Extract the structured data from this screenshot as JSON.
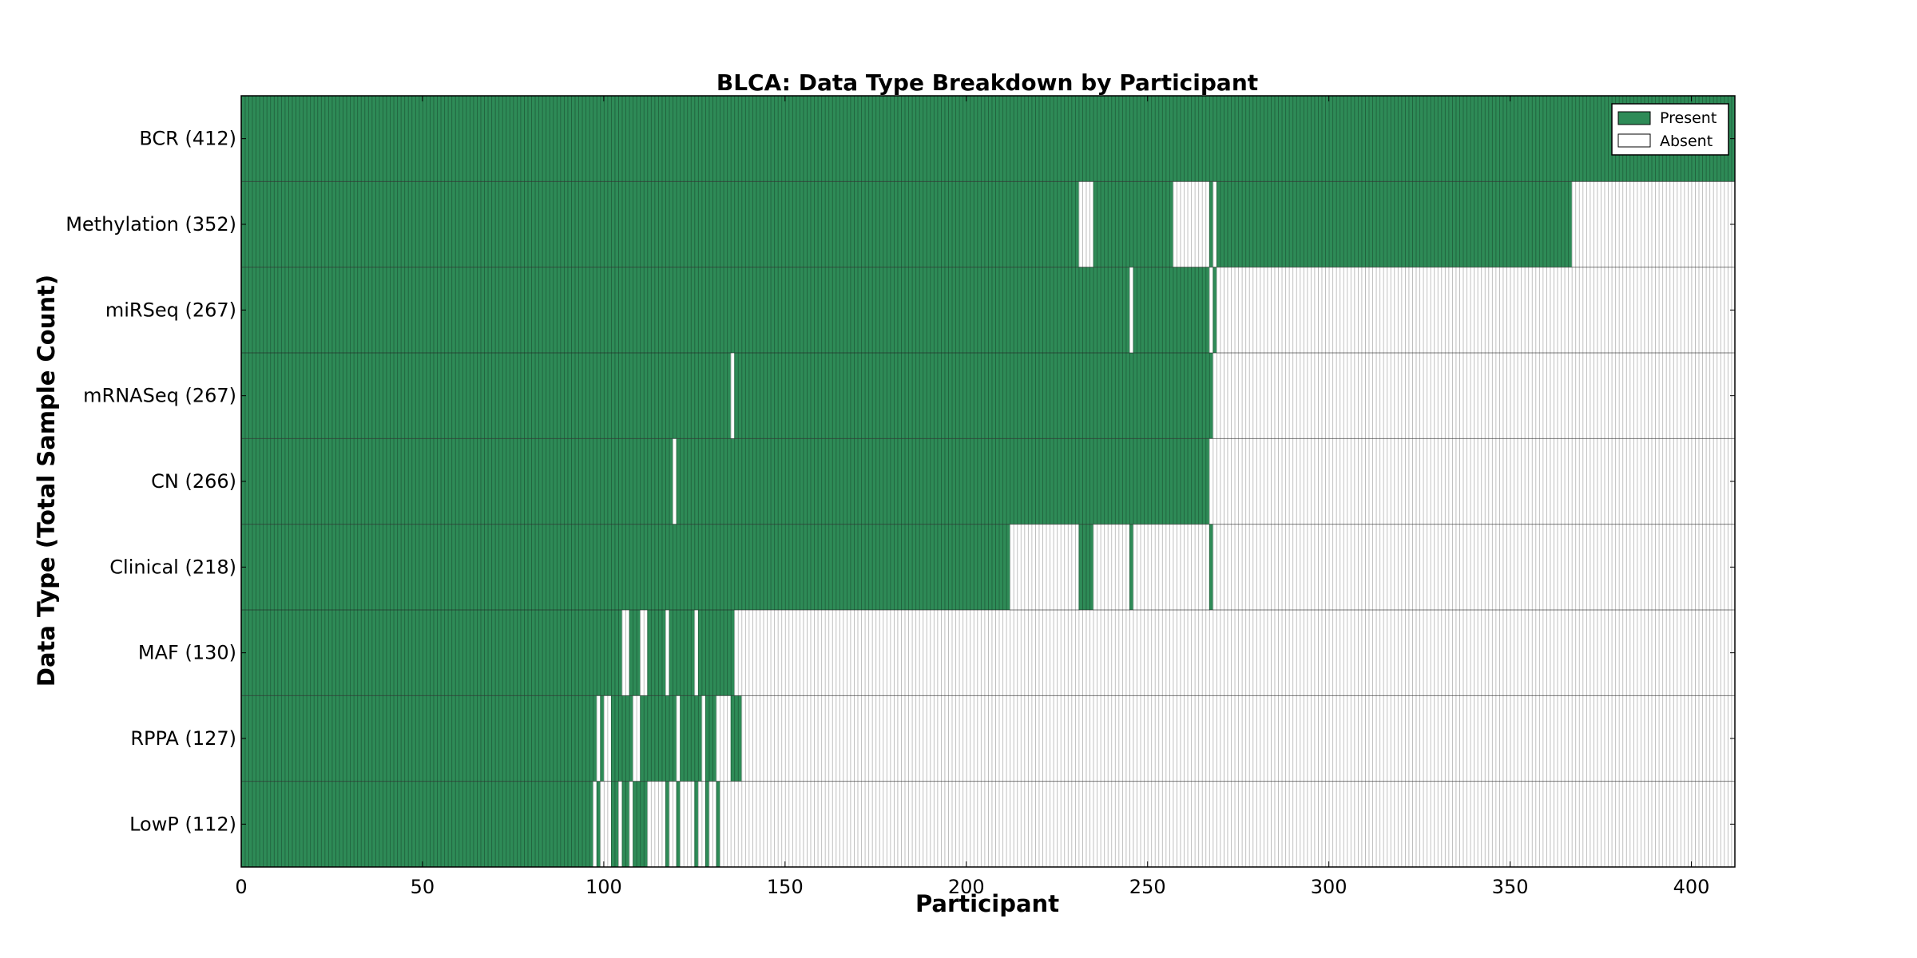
{
  "chart_data": {
    "type": "heatmap",
    "title": "BLCA: Data Type Breakdown by Participant",
    "xlabel": "Participant",
    "ylabel": "Data Type (Total Sample Count)",
    "xlim": [
      0,
      412
    ],
    "x_ticks": [
      "0",
      "50",
      "100",
      "150",
      "200",
      "250",
      "300",
      "350",
      "400"
    ],
    "x_tick_values": [
      0,
      50,
      100,
      150,
      200,
      250,
      300,
      350,
      400
    ],
    "legend": {
      "placement": "top-right",
      "present_label": "Present",
      "absent_label": "Absent"
    },
    "colors": {
      "present": "#2e8b57",
      "absent": "#ffffff",
      "stripe": "#1f5f3b",
      "absent_stripe": "#b0b0b0"
    },
    "rows": [
      {
        "label": "BCR (412)",
        "present_ranges": [
          [
            0,
            412
          ]
        ]
      },
      {
        "label": "Methylation (352)",
        "present_ranges": [
          [
            0,
            231
          ],
          [
            235,
            257
          ],
          [
            267,
            268
          ],
          [
            269,
            367
          ]
        ]
      },
      {
        "label": "miRSeq (267)",
        "present_ranges": [
          [
            0,
            245
          ],
          [
            246,
            267
          ],
          [
            268,
            269
          ]
        ]
      },
      {
        "label": "mRNASeq (267)",
        "present_ranges": [
          [
            0,
            135
          ],
          [
            136,
            268
          ]
        ]
      },
      {
        "label": "CN (266)",
        "present_ranges": [
          [
            0,
            119
          ],
          [
            120,
            267
          ]
        ]
      },
      {
        "label": "Clinical (218)",
        "present_ranges": [
          [
            0,
            212
          ],
          [
            231,
            235
          ],
          [
            245,
            246
          ],
          [
            267,
            268
          ]
        ]
      },
      {
        "label": "MAF (130)",
        "present_ranges": [
          [
            0,
            105
          ],
          [
            107,
            110
          ],
          [
            112,
            117
          ],
          [
            118,
            125
          ],
          [
            126,
            136
          ]
        ]
      },
      {
        "label": "RPPA (127)",
        "present_ranges": [
          [
            0,
            98
          ],
          [
            99,
            100
          ],
          [
            102,
            108
          ],
          [
            110,
            120
          ],
          [
            121,
            127
          ],
          [
            128,
            131
          ],
          [
            135,
            138
          ]
        ]
      },
      {
        "label": "LowP (112)",
        "present_ranges": [
          [
            0,
            97
          ],
          [
            98,
            99
          ],
          [
            102,
            104
          ],
          [
            105,
            107
          ],
          [
            108,
            112
          ],
          [
            117,
            118
          ],
          [
            120,
            121
          ],
          [
            125,
            126
          ],
          [
            128,
            129
          ],
          [
            131,
            132
          ]
        ]
      }
    ]
  }
}
